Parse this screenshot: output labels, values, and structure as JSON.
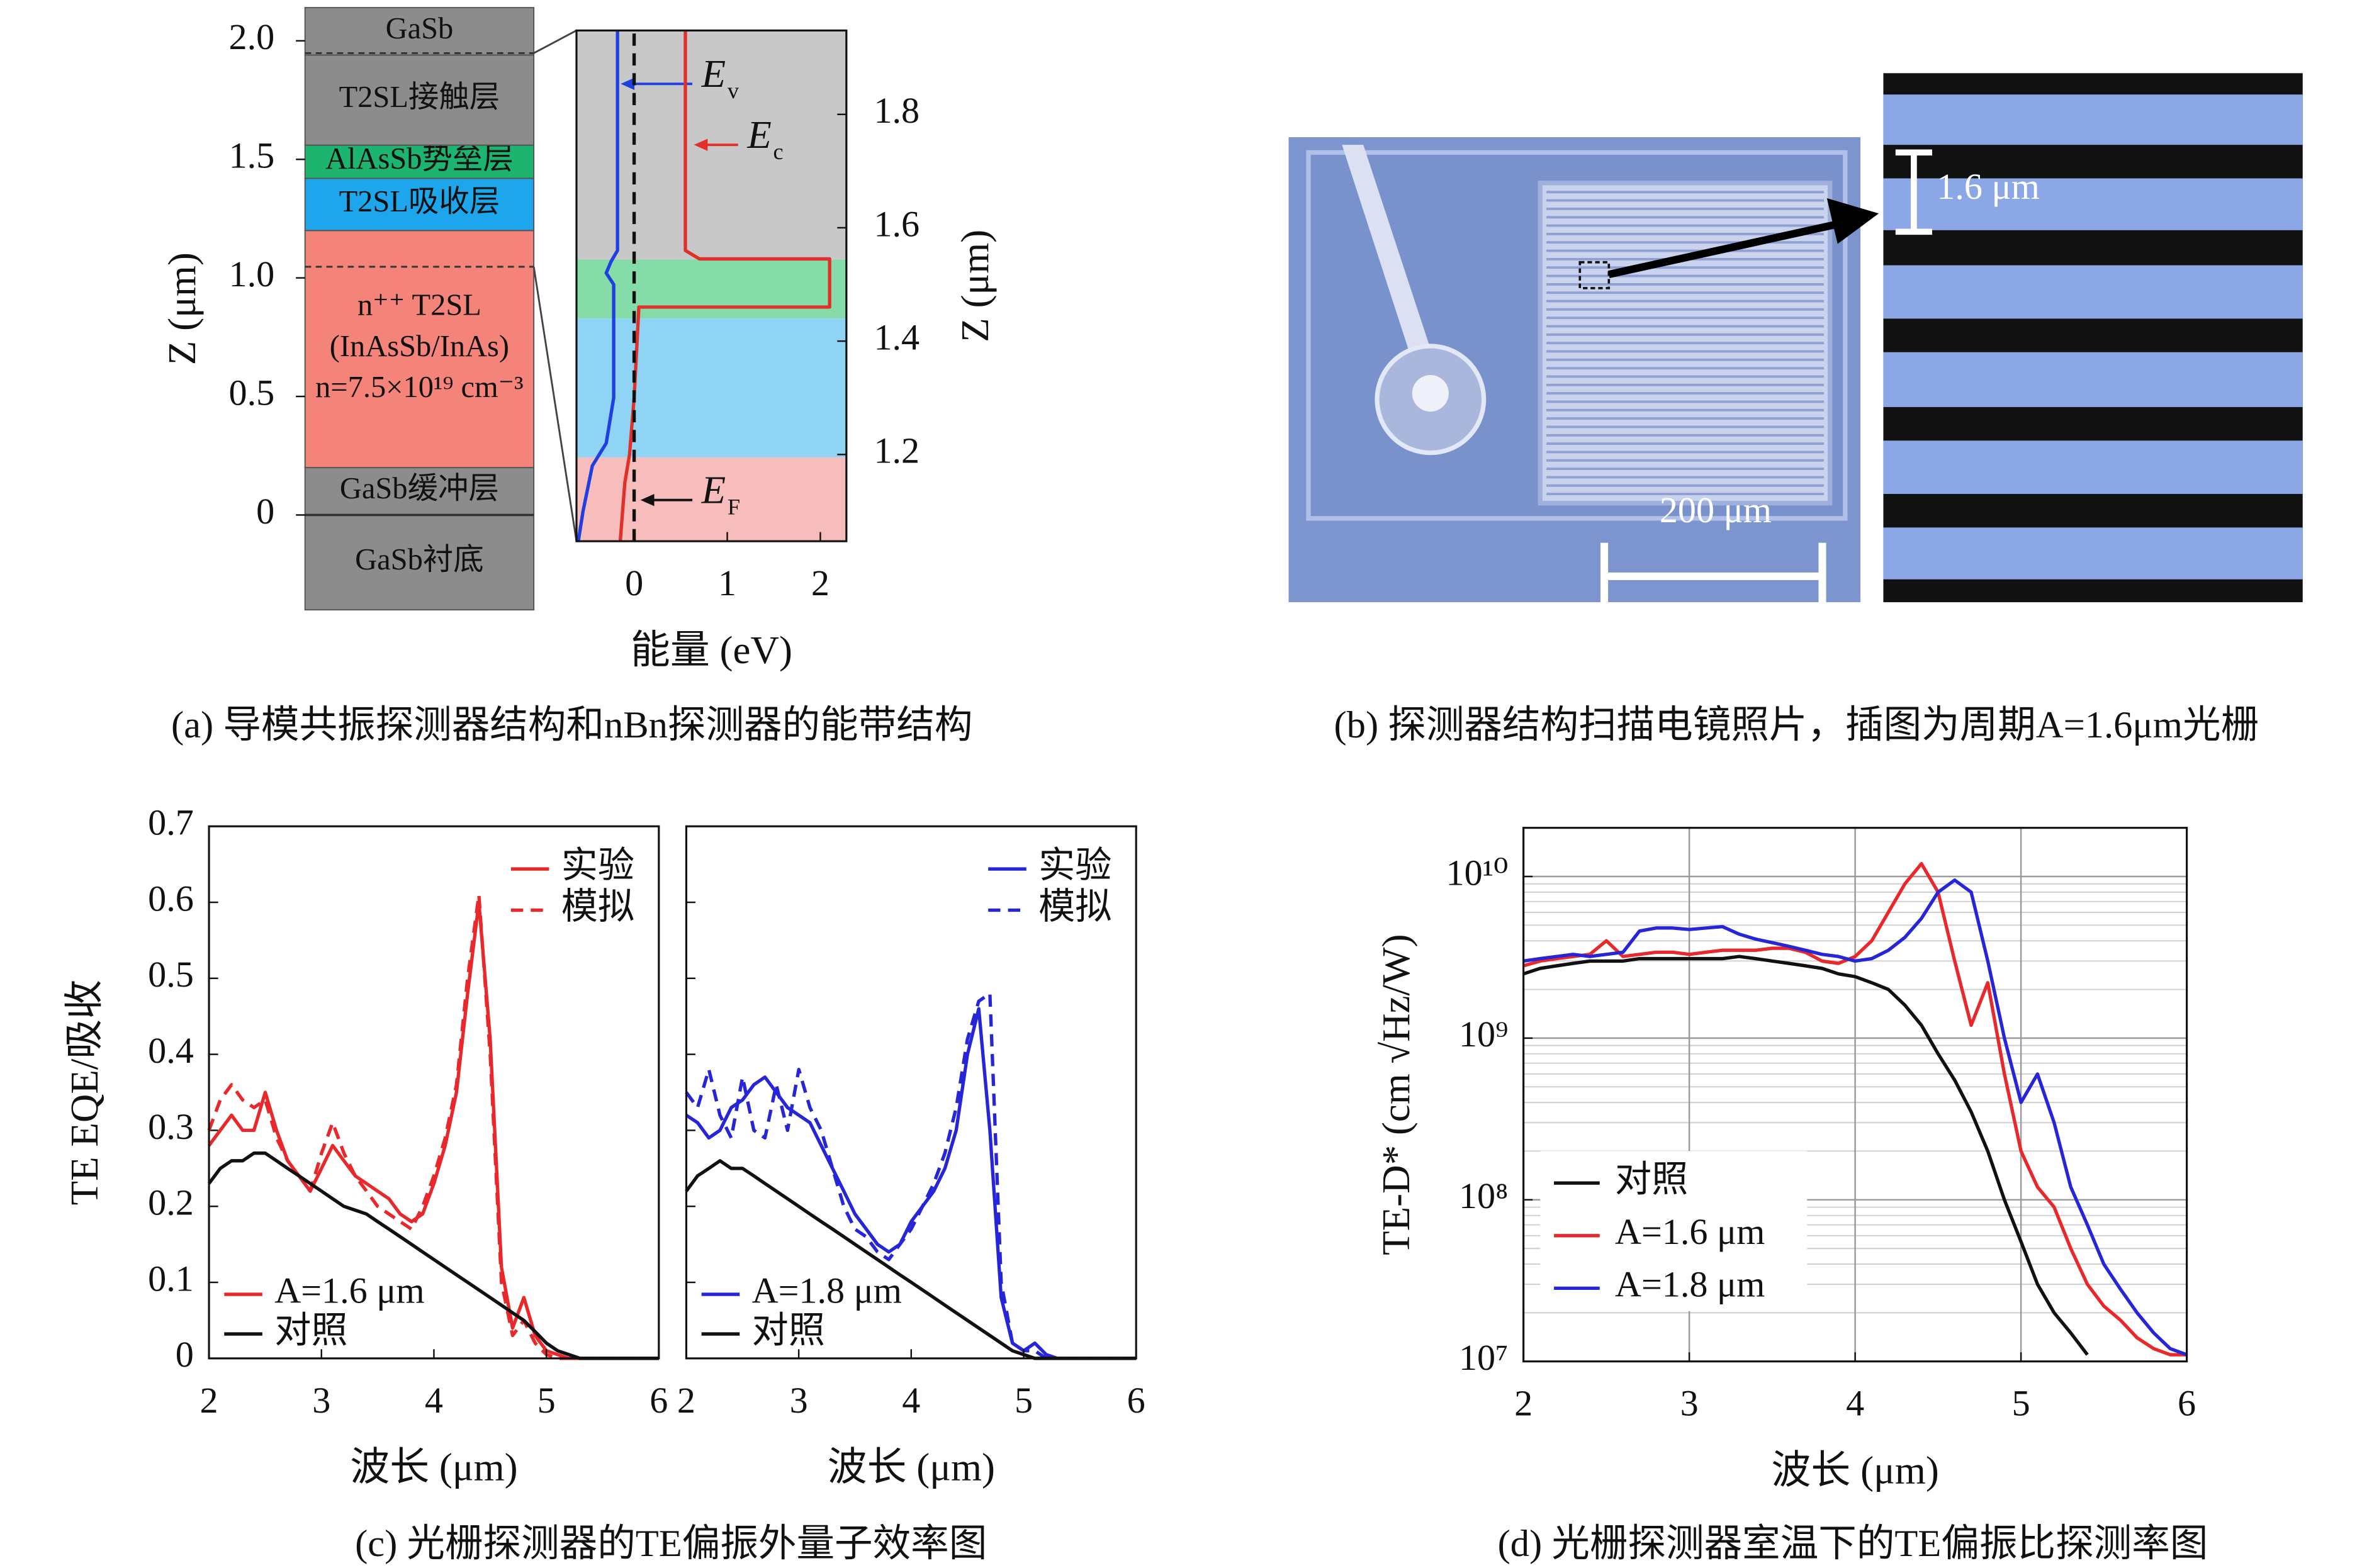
{
  "chart_data": [
    {
      "type": "layers",
      "ylabel": "Z (μm)",
      "ylim": [
        -0.4,
        2.14
      ],
      "yticks": [
        0,
        0.5,
        {
          "value": 1,
          "label": "1.0"
        },
        1.5,
        {
          "value": 2,
          "label": "2.0"
        }
      ],
      "layers": [
        {
          "label": [
            "GaSb衬底"
          ],
          "range": [
            -0.4,
            0
          ],
          "color": "#8c8c8c"
        },
        {
          "label": [
            "GaSb缓冲层"
          ],
          "range": [
            0,
            0.2
          ],
          "color": "#8c8c8c"
        },
        {
          "label": [
            "n⁺⁺ T2SL",
            "(InAsSb/InAs)",
            "n=7.5×10¹⁹ cm⁻³"
          ],
          "range": [
            0.2,
            1.2
          ],
          "color": "#f4837a"
        },
        {
          "label": [
            "T2SL吸收层"
          ],
          "range": [
            1.2,
            1.42
          ],
          "color": "#1ea6ec"
        },
        {
          "label": [
            "AlAsSb势垒层"
          ],
          "range": [
            1.42,
            1.56
          ],
          "color": "#1db470"
        },
        {
          "label": [
            "T2SL接触层"
          ],
          "range": [
            1.56,
            1.94
          ],
          "color": "#8c8c8c"
        },
        {
          "label": [
            "GaSb"
          ],
          "range": [
            1.94,
            2.14
          ],
          "color": "#8c8c8c"
        }
      ],
      "caption": "(a) 导模共振探测器结构和nBn探测器的能带结构"
    },
    {
      "type": "line",
      "xlabel": "能量 (eV)",
      "ylabel": "Z (μm)",
      "yaxis_side": "right",
      "xlim": [
        -0.62,
        2.28
      ],
      "xticks": [
        0,
        1,
        2
      ],
      "ylim": [
        1.047,
        1.948
      ],
      "yticks": [
        1.2,
        1.4,
        1.6,
        1.8
      ],
      "zoom_layers": [
        {
          "range": [
            1.047,
            1.195
          ],
          "color": "#f7bdbd"
        },
        {
          "range": [
            1.195,
            1.44
          ],
          "color": "#8fd3f5"
        },
        {
          "range": [
            1.44,
            1.544
          ],
          "color": "#86dca8"
        },
        {
          "range": [
            1.544,
            1.948
          ],
          "color": "#c8c8c8"
        }
      ],
      "series": [
        {
          "label": "E",
          "label_sub": "v",
          "color": "#1f3fe0",
          "x": [
            -0.18,
            -0.18,
            -0.25,
            -0.3,
            -0.22,
            -0.22,
            -0.3,
            -0.45,
            -0.55,
            -0.6
          ],
          "y": [
            1.948,
            1.56,
            1.54,
            1.52,
            1.5,
            1.3,
            1.22,
            1.18,
            1.1,
            1.047
          ]
        },
        {
          "label": "E",
          "label_sub": "c",
          "color": "#e0302a",
          "x": [
            0.55,
            0.55,
            0.7,
            2.1,
            2.1,
            0.05,
            0,
            -0.05,
            -0.1,
            -0.15
          ],
          "y": [
            1.948,
            1.56,
            1.545,
            1.545,
            1.46,
            1.46,
            1.3,
            1.2,
            1.15,
            1.047
          ]
        },
        {
          "label": "E",
          "label_sub": "F",
          "color": "#111111",
          "dash": true,
          "x": [
            0,
            0
          ],
          "y": [
            1.047,
            1.948
          ]
        }
      ]
    },
    {
      "type": "line",
      "ylabel": "TE EQE/吸收",
      "xlabel": "波长 (μm)",
      "xlim": [
        2,
        6
      ],
      "xticks": [
        2,
        3,
        4,
        5,
        6
      ],
      "ylim": [
        0,
        0.7
      ],
      "yticks": [
        0,
        0.1,
        0.2,
        0.3,
        0.4,
        0.5,
        0.6,
        0.7
      ],
      "x": [
        2,
        2.1,
        2.2,
        2.3,
        2.4,
        2.5,
        2.6,
        2.7,
        2.8,
        2.9,
        3,
        3.1,
        3.2,
        3.3,
        3.4,
        3.5,
        3.6,
        3.7,
        3.8,
        3.9,
        4,
        4.1,
        4.2,
        4.3,
        4.4,
        4.5,
        4.6,
        4.7,
        4.8,
        4.9,
        5,
        5.1,
        5.2,
        5.3,
        5.4,
        5.5,
        5.6,
        5.7,
        5.8,
        5.9,
        6
      ],
      "series": [
        {
          "name": "实验",
          "color": "#e8282a",
          "values": [
            0.28,
            0.3,
            0.32,
            0.3,
            0.3,
            0.35,
            0.3,
            0.26,
            0.24,
            0.22,
            0.25,
            0.28,
            0.26,
            0.24,
            0.23,
            0.22,
            0.21,
            0.19,
            0.18,
            0.19,
            0.23,
            0.28,
            0.35,
            0.48,
            0.6,
            0.42,
            0.12,
            0.04,
            0.08,
            0.03,
            0.01,
            0.005,
            0,
            0,
            0,
            0,
            0,
            0,
            0,
            0,
            0
          ]
        },
        {
          "name": "模拟",
          "color": "#e8282a",
          "dash": true,
          "values": [
            0.3,
            0.34,
            0.36,
            0.34,
            0.33,
            0.34,
            0.29,
            0.26,
            0.24,
            0.22,
            0.27,
            0.31,
            0.27,
            0.24,
            0.22,
            0.2,
            0.19,
            0.18,
            0.17,
            0.2,
            0.24,
            0.29,
            0.36,
            0.5,
            0.61,
            0.4,
            0.1,
            0.03,
            0.05,
            0.02,
            0.005,
            0,
            0,
            0,
            0,
            0,
            0,
            0,
            0,
            0,
            0
          ]
        },
        {
          "name": "对照",
          "color": "#111111",
          "values": [
            0.23,
            0.25,
            0.26,
            0.26,
            0.27,
            0.27,
            0.26,
            0.25,
            0.24,
            0.23,
            0.22,
            0.21,
            0.2,
            0.195,
            0.19,
            0.18,
            0.17,
            0.16,
            0.15,
            0.14,
            0.13,
            0.12,
            0.11,
            0.1,
            0.09,
            0.08,
            0.07,
            0.06,
            0.05,
            0.035,
            0.02,
            0.01,
            0.005,
            0,
            0,
            0,
            0,
            0,
            0,
            0,
            0
          ]
        }
      ],
      "grating_label": "A=1.6 μm",
      "caption": "(c) 光栅探测器的TE偏振外量子效率图"
    },
    {
      "type": "line",
      "xlabel": "波长 (μm)",
      "ytick_labels": false,
      "xlim": [
        2,
        6
      ],
      "xticks": [
        2,
        3,
        4,
        5,
        6
      ],
      "ylim": [
        0,
        0.7
      ],
      "yticks": [
        0,
        0.1,
        0.2,
        0.3,
        0.4,
        0.5,
        0.6,
        0.7
      ],
      "x": [
        2,
        2.1,
        2.2,
        2.3,
        2.4,
        2.5,
        2.6,
        2.7,
        2.8,
        2.9,
        3,
        3.1,
        3.2,
        3.3,
        3.4,
        3.5,
        3.6,
        3.7,
        3.8,
        3.9,
        4,
        4.1,
        4.2,
        4.3,
        4.4,
        4.5,
        4.6,
        4.7,
        4.8,
        4.9,
        5,
        5.1,
        5.2,
        5.3,
        5.4,
        5.5,
        5.6,
        5.7,
        5.8,
        5.9,
        6
      ],
      "series": [
        {
          "name": "实验",
          "color": "#2626d8",
          "values": [
            0.32,
            0.31,
            0.29,
            0.3,
            0.33,
            0.34,
            0.36,
            0.37,
            0.35,
            0.33,
            0.32,
            0.31,
            0.28,
            0.25,
            0.22,
            0.19,
            0.17,
            0.15,
            0.14,
            0.15,
            0.18,
            0.2,
            0.22,
            0.25,
            0.3,
            0.4,
            0.46,
            0.3,
            0.08,
            0.02,
            0.01,
            0.02,
            0.005,
            0,
            0,
            0,
            0,
            0,
            0,
            0,
            0
          ]
        },
        {
          "name": "模拟",
          "color": "#2626d8",
          "dash": true,
          "values": [
            0.35,
            0.33,
            0.38,
            0.32,
            0.29,
            0.37,
            0.3,
            0.29,
            0.36,
            0.3,
            0.38,
            0.33,
            0.3,
            0.25,
            0.2,
            0.17,
            0.16,
            0.14,
            0.13,
            0.15,
            0.17,
            0.2,
            0.23,
            0.27,
            0.33,
            0.42,
            0.47,
            0.48,
            0.1,
            0.02,
            0.01,
            0.01,
            0,
            0,
            0,
            0,
            0,
            0,
            0,
            0,
            0
          ]
        },
        {
          "name": "对照",
          "color": "#111111",
          "values": [
            0.22,
            0.24,
            0.25,
            0.26,
            0.25,
            0.25,
            0.24,
            0.23,
            0.22,
            0.21,
            0.2,
            0.19,
            0.18,
            0.17,
            0.16,
            0.15,
            0.14,
            0.13,
            0.12,
            0.11,
            0.1,
            0.09,
            0.08,
            0.07,
            0.06,
            0.05,
            0.04,
            0.03,
            0.02,
            0.01,
            0.005,
            0,
            0,
            0,
            0,
            0,
            0,
            0,
            0,
            0,
            0
          ]
        }
      ],
      "grating_label": "A=1.8 μm"
    },
    {
      "type": "line",
      "log_y": true,
      "grid": true,
      "ylabel": "TE-D* (cm √Hz/W)",
      "xlabel": "波长 (μm)",
      "xlim": [
        2,
        6
      ],
      "xticks": [
        2,
        3,
        4,
        5,
        6
      ],
      "ylim": [
        10000000.0,
        20000000000.0
      ],
      "yticks": [
        {
          "value": 10000000.0,
          "label": "10⁷"
        },
        {
          "value": 100000000.0,
          "label": "10⁸"
        },
        {
          "value": 1000000000.0,
          "label": "10⁹"
        },
        {
          "value": 10000000000.0,
          "label": "10¹⁰"
        }
      ],
      "x": [
        2,
        2.1,
        2.2,
        2.3,
        2.4,
        2.5,
        2.6,
        2.7,
        2.8,
        2.9,
        3,
        3.1,
        3.2,
        3.3,
        3.4,
        3.5,
        3.6,
        3.7,
        3.8,
        3.9,
        4,
        4.1,
        4.2,
        4.3,
        4.4,
        4.5,
        4.6,
        4.7,
        4.8,
        4.9,
        5,
        5.1,
        5.2,
        5.3,
        5.4,
        5.5,
        5.6,
        5.7,
        5.8,
        5.9,
        6
      ],
      "series": [
        {
          "name": "对照",
          "color": "#111111",
          "values": [
            2500000000.0,
            2700000000.0,
            2800000000.0,
            2900000000.0,
            3000000000.0,
            3000000000.0,
            3000000000.0,
            3100000000.0,
            3100000000.0,
            3100000000.0,
            3100000000.0,
            3100000000.0,
            3100000000.0,
            3200000000.0,
            3100000000.0,
            3000000000.0,
            2900000000.0,
            2800000000.0,
            2700000000.0,
            2500000000.0,
            2400000000.0,
            2200000000.0,
            2000000000.0,
            1600000000.0,
            1200000000.0,
            800000000.0,
            550000000.0,
            350000000.0,
            200000000.0,
            100000000.0,
            55000000.0,
            30000000.0,
            20000000.0,
            15000000.0,
            11000000.0,
            null,
            null,
            null,
            null,
            null,
            null
          ]
        },
        {
          "name": "A=1.6 μm",
          "color": "#e8282a",
          "values": [
            2800000000.0,
            3000000000.0,
            3100000000.0,
            3200000000.0,
            3300000000.0,
            4000000000.0,
            3200000000.0,
            3300000000.0,
            3400000000.0,
            3400000000.0,
            3300000000.0,
            3400000000.0,
            3500000000.0,
            3500000000.0,
            3500000000.0,
            3600000000.0,
            3600000000.0,
            3400000000.0,
            3000000000.0,
            2900000000.0,
            3200000000.0,
            4000000000.0,
            6000000000.0,
            9000000000.0,
            12000000000.0,
            8000000000.0,
            3000000000.0,
            1200000000.0,
            2200000000.0,
            600000000.0,
            200000000.0,
            120000000.0,
            90000000.0,
            50000000.0,
            30000000.0,
            22000000.0,
            18000000.0,
            14000000.0,
            12000000.0,
            11000000.0,
            11000000.0
          ]
        },
        {
          "name": "A=1.8 μm",
          "color": "#2626d8",
          "values": [
            3000000000.0,
            3100000000.0,
            3200000000.0,
            3300000000.0,
            3200000000.0,
            3300000000.0,
            3400000000.0,
            4600000000.0,
            4800000000.0,
            4800000000.0,
            4700000000.0,
            4800000000.0,
            4900000000.0,
            4400000000.0,
            4100000000.0,
            3900000000.0,
            3700000000.0,
            3500000000.0,
            3300000000.0,
            3200000000.0,
            3000000000.0,
            3100000000.0,
            3500000000.0,
            4200000000.0,
            5500000000.0,
            8000000000.0,
            9500000000.0,
            8000000000.0,
            3000000000.0,
            1000000000.0,
            400000000.0,
            600000000.0,
            300000000.0,
            120000000.0,
            70000000.0,
            40000000.0,
            28000000.0,
            20000000.0,
            15000000.0,
            12000000.0,
            11000000.0
          ]
        }
      ],
      "caption": "(d) 光栅探测器室温下的TE偏振比探测率图"
    }
  ],
  "photo": {
    "inset_scale": "1.6 μm",
    "main_scale": "200 μm",
    "caption": "(b) 探测器结构扫描电镜照片，插图为周期A=1.6μm光栅"
  }
}
